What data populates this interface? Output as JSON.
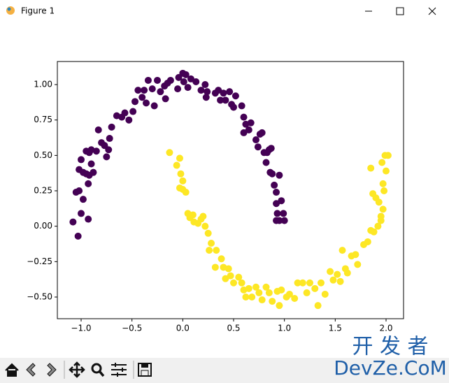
{
  "window": {
    "title": "Figure 1"
  },
  "watermark": {
    "line1": "开 发 者",
    "line2": "DevZe.CoM"
  },
  "chart_data": {
    "type": "scatter",
    "xlim": [
      -1.234,
      2.172
    ],
    "ylim": [
      -0.653,
      1.163
    ],
    "xticks": [
      {
        "value": -1.0,
        "label": "−1.0"
      },
      {
        "value": -0.5,
        "label": "−0.5"
      },
      {
        "value": 0.0,
        "label": "0.0"
      },
      0.5,
      {
        "value": 1.0,
        "label": "1.0"
      },
      1.5,
      {
        "value": 2.0,
        "label": "2.0"
      }
    ],
    "yticks": [
      {
        "value": -0.5,
        "label": "−0.50"
      },
      {
        "value": -0.25,
        "label": "−0.25"
      },
      {
        "value": 0.0,
        "label": "0.00"
      },
      {
        "value": 0.25,
        "label": "0.25"
      },
      {
        "value": 0.5,
        "label": "0.50"
      },
      {
        "value": 0.75,
        "label": "0.75"
      },
      {
        "value": 1.0,
        "label": "1.00"
      }
    ],
    "series": [
      {
        "color": "#440154",
        "x": [
          -1.08,
          -1.05,
          -1.02,
          -1.03,
          -1.0,
          -0.98,
          -0.93,
          -1.0,
          -1.02,
          -0.98,
          -0.95,
          -0.92,
          -0.88,
          -0.95,
          -0.92,
          -0.9,
          -0.93,
          -0.9,
          -0.85,
          -0.83,
          -0.8,
          -0.77,
          -0.75,
          -0.73,
          -0.72,
          -0.7,
          -0.65,
          -0.6,
          -0.57,
          -0.53,
          -0.49,
          -0.47,
          -0.44,
          -0.4,
          -0.36,
          -0.38,
          -0.34,
          -0.3,
          -0.28,
          -0.25,
          -0.22,
          -0.18,
          -0.15,
          -0.17,
          -0.12,
          -0.05,
          -0.04,
          0.0,
          0.03,
          0.01,
          0.05,
          0.08,
          0.13,
          0.18,
          0.22,
          0.23,
          0.24,
          0.32,
          0.35,
          0.37,
          0.4,
          0.42,
          0.46,
          0.48,
          0.5,
          0.52,
          0.58,
          0.6,
          0.62,
          0.6,
          0.65,
          0.67,
          0.72,
          0.74,
          0.76,
          0.78,
          0.8,
          0.83,
          0.85,
          0.87,
          0.82,
          0.86,
          0.88,
          0.9,
          0.92,
          0.95,
          0.92,
          0.97,
          0.93,
          0.95,
          0.99,
          0.92,
          1.0
        ],
        "values": [
          0.03,
          0.24,
          0.25,
          -0.07,
          0.09,
          0.19,
          0.05,
          0.47,
          0.4,
          0.38,
          0.37,
          0.36,
          0.38,
          0.53,
          0.52,
          0.54,
          0.3,
          0.44,
          0.53,
          0.68,
          0.59,
          0.57,
          0.49,
          0.54,
          0.62,
          0.7,
          0.78,
          0.77,
          0.8,
          0.75,
          0.81,
          0.88,
          0.96,
          0.91,
          0.87,
          0.96,
          1.03,
          0.97,
          0.85,
          1.03,
          0.95,
          0.99,
          1.01,
          0.9,
          1.03,
          0.97,
          1.05,
          1.08,
          1.07,
          1.02,
          0.98,
          1.04,
          1.02,
          0.96,
          1.0,
          0.91,
          0.95,
          0.94,
          0.96,
          0.89,
          0.94,
          0.89,
          0.95,
          0.86,
          0.84,
          0.92,
          0.85,
          0.77,
          0.72,
          0.66,
          0.68,
          0.73,
          0.61,
          0.56,
          0.65,
          0.66,
          0.52,
          0.52,
          0.54,
          0.55,
          0.45,
          0.38,
          0.37,
          0.29,
          0.24,
          0.36,
          0.16,
          0.18,
          0.09,
          0.04,
          0.09,
          0.04,
          0.04
        ]
      },
      {
        "color": "#fde725",
        "x": [
          -0.13,
          -0.06,
          -0.03,
          -0.02,
          0.0,
          -0.03,
          0.0,
          0.03,
          0.05,
          0.07,
          0.1,
          0.11,
          0.15,
          0.18,
          0.2,
          0.22,
          0.25,
          0.28,
          0.26,
          0.33,
          0.38,
          0.32,
          0.4,
          0.45,
          0.42,
          0.47,
          0.5,
          0.55,
          0.58,
          0.6,
          0.65,
          0.62,
          0.68,
          0.72,
          0.75,
          0.78,
          0.82,
          0.85,
          0.88,
          0.93,
          0.95,
          0.97,
          1.02,
          1.05,
          1.1,
          1.13,
          1.18,
          1.22,
          1.25,
          1.3,
          1.33,
          1.36,
          1.4,
          1.45,
          1.48,
          1.52,
          1.55,
          1.57,
          1.6,
          1.62,
          1.66,
          1.7,
          1.72,
          1.78,
          1.82,
          1.85,
          1.88,
          1.92,
          1.87,
          1.9,
          1.93,
          1.97,
          1.95,
          1.98,
          1.85,
          1.97,
          2.0,
          1.99,
          2.02,
          1.96,
          1.95
        ],
        "values": [
          0.52,
          0.43,
          0.48,
          0.37,
          0.32,
          0.27,
          0.26,
          0.24,
          0.09,
          0.06,
          0.08,
          0.03,
          0.02,
          0.05,
          0.07,
          0.0,
          -0.05,
          -0.12,
          -0.17,
          -0.17,
          -0.23,
          -0.29,
          -0.29,
          -0.3,
          -0.37,
          -0.35,
          -0.4,
          -0.36,
          -0.4,
          -0.45,
          -0.44,
          -0.5,
          -0.5,
          -0.43,
          -0.47,
          -0.52,
          -0.43,
          -0.47,
          -0.53,
          -0.46,
          -0.56,
          -0.45,
          -0.5,
          -0.48,
          -0.51,
          -0.4,
          -0.4,
          -0.47,
          -0.4,
          -0.44,
          -0.56,
          -0.4,
          -0.48,
          -0.32,
          -0.38,
          -0.34,
          -0.39,
          -0.17,
          -0.3,
          -0.33,
          -0.21,
          -0.2,
          -0.27,
          -0.13,
          -0.11,
          -0.03,
          -0.04,
          0.0,
          0.23,
          0.2,
          0.17,
          0.12,
          0.07,
          0.25,
          0.41,
          0.3,
          0.39,
          0.5,
          0.5,
          0.45,
          0.04
        ]
      }
    ]
  }
}
